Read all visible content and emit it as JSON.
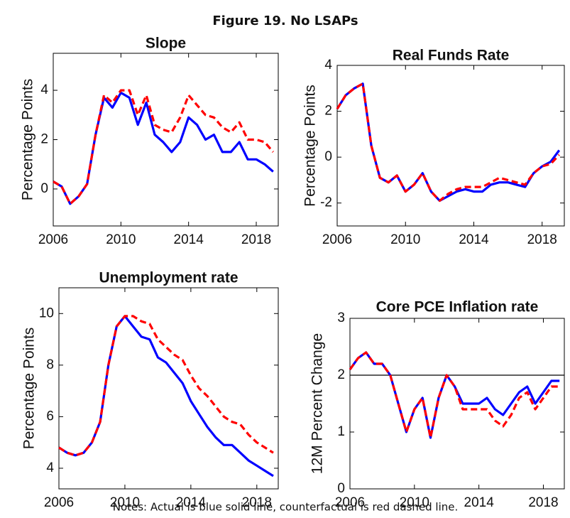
{
  "title": "Figure 19. No LSAPs",
  "notes": "Notes: Actual is blue solid line, counterfactual is red dashed line.",
  "chart_data": [
    {
      "type": "line",
      "title": "Slope",
      "y_label": "Percentage Points",
      "x": [
        2006,
        2006.5,
        2007,
        2007.5,
        2008,
        2008.5,
        2009,
        2009.5,
        2010,
        2010.5,
        2011,
        2011.5,
        2012,
        2012.5,
        2013,
        2013.5,
        2014,
        2014.5,
        2015,
        2015.5,
        2016,
        2016.5,
        2017,
        2017.5,
        2018,
        2018.5,
        2019
      ],
      "xlim": [
        2006,
        2019.3
      ],
      "xticks": [
        2006,
        2010,
        2014,
        2018
      ],
      "ylim": [
        -1.5,
        5.5
      ],
      "yticks": [
        0,
        2,
        4
      ],
      "series": [
        {
          "color": "#0000ff",
          "style": "solid",
          "values": [
            0.3,
            0.1,
            -0.6,
            -0.3,
            0.2,
            2.2,
            3.7,
            3.3,
            3.9,
            3.7,
            2.6,
            3.5,
            2.2,
            1.9,
            1.5,
            1.9,
            2.9,
            2.6,
            2.0,
            2.2,
            1.5,
            1.5,
            1.9,
            1.2,
            1.2,
            1.0,
            0.7
          ]
        },
        {
          "color": "#ff0000",
          "style": "dashed",
          "values": [
            0.3,
            0.1,
            -0.6,
            -0.3,
            0.2,
            2.2,
            3.8,
            3.5,
            4.0,
            4.0,
            3.0,
            3.8,
            2.6,
            2.4,
            2.3,
            2.9,
            3.8,
            3.4,
            3.0,
            2.9,
            2.5,
            2.3,
            2.7,
            2.0,
            2.0,
            1.9,
            1.5
          ]
        }
      ]
    },
    {
      "type": "line",
      "title": "Real Funds Rate",
      "y_label": "Percentage Points",
      "x": [
        2006,
        2006.5,
        2007,
        2007.5,
        2008,
        2008.5,
        2009,
        2009.5,
        2010,
        2010.5,
        2011,
        2011.5,
        2012,
        2012.5,
        2013,
        2013.5,
        2014,
        2014.5,
        2015,
        2015.5,
        2016,
        2016.5,
        2017,
        2017.5,
        2018,
        2018.5,
        2019
      ],
      "xlim": [
        2006,
        2019.3
      ],
      "xticks": [
        2006,
        2010,
        2014,
        2018
      ],
      "ylim": [
        -3,
        4
      ],
      "yticks": [
        -2,
        0,
        2,
        4
      ],
      "series": [
        {
          "color": "#0000ff",
          "style": "solid",
          "values": [
            2.1,
            2.7,
            3.0,
            3.2,
            0.5,
            -0.9,
            -1.1,
            -0.8,
            -1.5,
            -1.2,
            -0.7,
            -1.5,
            -1.9,
            -1.7,
            -1.5,
            -1.4,
            -1.5,
            -1.5,
            -1.2,
            -1.1,
            -1.1,
            -1.2,
            -1.3,
            -0.7,
            -0.4,
            -0.2,
            0.3
          ]
        },
        {
          "color": "#ff0000",
          "style": "dashed",
          "values": [
            2.1,
            2.7,
            3.0,
            3.2,
            0.5,
            -0.9,
            -1.1,
            -0.8,
            -1.5,
            -1.2,
            -0.7,
            -1.5,
            -1.9,
            -1.6,
            -1.4,
            -1.3,
            -1.3,
            -1.3,
            -1.1,
            -0.9,
            -1.0,
            -1.1,
            -1.2,
            -0.7,
            -0.4,
            -0.3,
            0.1
          ]
        }
      ]
    },
    {
      "type": "line",
      "title": "Unemployment rate",
      "y_label": "Percentage Points",
      "x": [
        2006,
        2006.5,
        2007,
        2007.5,
        2008,
        2008.5,
        2009,
        2009.5,
        2010,
        2010.5,
        2011,
        2011.5,
        2012,
        2012.5,
        2013,
        2013.5,
        2014,
        2014.5,
        2015,
        2015.5,
        2016,
        2016.5,
        2017,
        2017.5,
        2018,
        2018.5,
        2019
      ],
      "xlim": [
        2006,
        2019.3
      ],
      "xticks": [
        2006,
        2010,
        2014,
        2018
      ],
      "ylim": [
        3.2,
        11
      ],
      "yticks": [
        4,
        6,
        8,
        10
      ],
      "series": [
        {
          "color": "#0000ff",
          "style": "solid",
          "values": [
            4.8,
            4.6,
            4.5,
            4.6,
            5.0,
            5.8,
            8.0,
            9.5,
            9.9,
            9.5,
            9.1,
            9.0,
            8.3,
            8.1,
            7.7,
            7.3,
            6.6,
            6.1,
            5.6,
            5.2,
            4.9,
            4.9,
            4.6,
            4.3,
            4.1,
            3.9,
            3.7
          ]
        },
        {
          "color": "#ff0000",
          "style": "dashed",
          "values": [
            4.8,
            4.6,
            4.5,
            4.6,
            5.0,
            5.8,
            8.0,
            9.5,
            9.9,
            9.9,
            9.7,
            9.6,
            9.0,
            8.7,
            8.4,
            8.2,
            7.6,
            7.1,
            6.8,
            6.4,
            6.0,
            5.8,
            5.7,
            5.3,
            5.0,
            4.8,
            4.6
          ]
        }
      ]
    },
    {
      "type": "line",
      "title": "Core PCE Inflation rate",
      "y_label": "12M Percent Change",
      "x": [
        2006,
        2006.5,
        2007,
        2007.5,
        2008,
        2008.5,
        2009,
        2009.5,
        2010,
        2010.5,
        2011,
        2011.5,
        2012,
        2012.5,
        2013,
        2013.5,
        2014,
        2014.5,
        2015,
        2015.5,
        2016,
        2016.5,
        2017,
        2017.5,
        2018,
        2018.5,
        2019
      ],
      "xlim": [
        2006,
        2019.3
      ],
      "xticks": [
        2006,
        2010,
        2014,
        2018
      ],
      "ylim": [
        0,
        3
      ],
      "yticks": [
        0,
        1,
        2,
        3
      ],
      "reference_line": 2,
      "series": [
        {
          "color": "#0000ff",
          "style": "solid",
          "values": [
            2.1,
            2.3,
            2.4,
            2.2,
            2.2,
            2.0,
            1.5,
            1.0,
            1.4,
            1.6,
            0.9,
            1.6,
            2.0,
            1.8,
            1.5,
            1.5,
            1.5,
            1.6,
            1.4,
            1.3,
            1.5,
            1.7,
            1.8,
            1.5,
            1.7,
            1.9,
            1.9
          ]
        },
        {
          "color": "#ff0000",
          "style": "dashed",
          "values": [
            2.1,
            2.3,
            2.4,
            2.2,
            2.2,
            2.0,
            1.5,
            1.0,
            1.4,
            1.6,
            0.9,
            1.6,
            2.0,
            1.8,
            1.4,
            1.4,
            1.4,
            1.4,
            1.2,
            1.1,
            1.3,
            1.6,
            1.7,
            1.4,
            1.6,
            1.8,
            1.8
          ]
        }
      ]
    }
  ]
}
